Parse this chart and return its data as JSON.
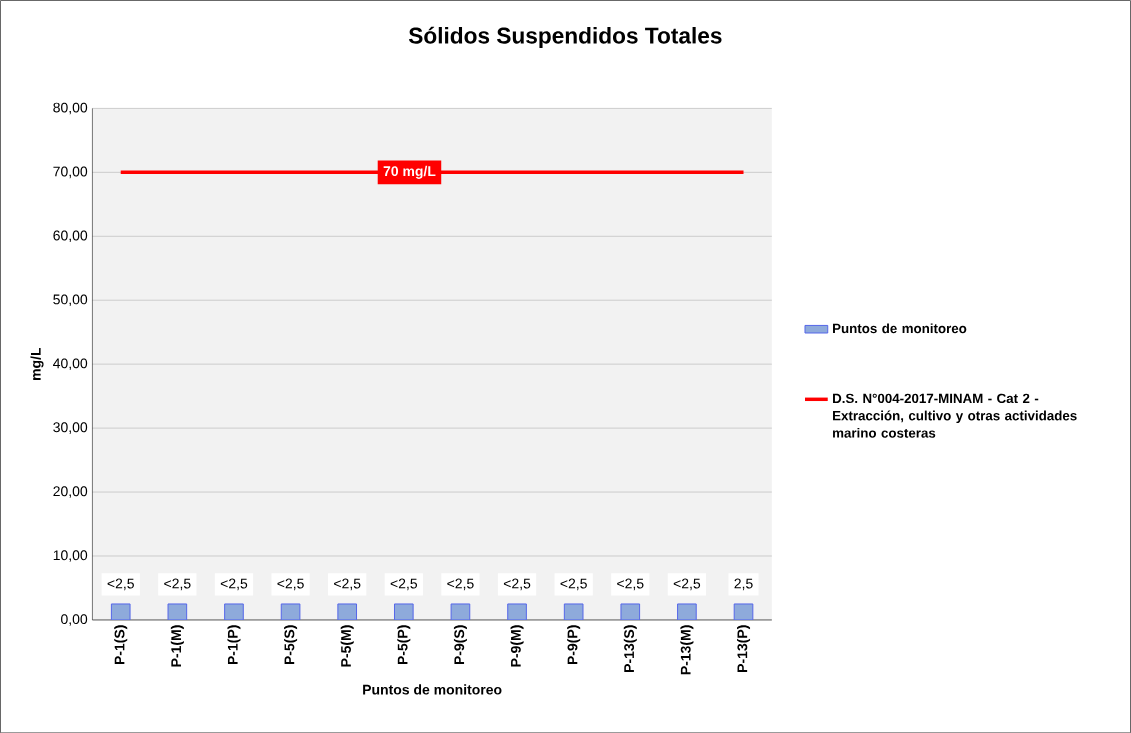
{
  "chart_data": {
    "type": "bar",
    "title": "Sólidos Suspendidos Totales",
    "xlabel": "Puntos de monitoreo",
    "ylabel": "mg/L",
    "categories": [
      "P-1(S)",
      "P-1(M)",
      "P-1(P)",
      "P-5(S)",
      "P-5(M)",
      "P-5(P)",
      "P-9(S)",
      "P-9(M)",
      "P-9(P)",
      "P-13(S)",
      "P-13(M)",
      "P-13(P)"
    ],
    "series": [
      {
        "name": "Puntos de monitoreo",
        "color": "#8eaadb",
        "values": [
          2.5,
          2.5,
          2.5,
          2.5,
          2.5,
          2.5,
          2.5,
          2.5,
          2.5,
          2.5,
          2.5,
          2.5
        ],
        "value_labels": [
          "<2,5",
          "<2,5",
          "<2,5",
          "<2,5",
          "<2,5",
          "<2,5",
          "<2,5",
          "<2,5",
          "<2,5",
          "<2,5",
          "<2,5",
          "2,5"
        ]
      },
      {
        "name": "D.S. N°004-2017-MINAM - Cat 2 - Extracción, cultivo y otras actividades marino costeras",
        "type": "line",
        "color": "#ff0000",
        "values": [
          70,
          70,
          70,
          70,
          70,
          70,
          70,
          70,
          70,
          70,
          70,
          70
        ]
      }
    ],
    "annotations": [
      {
        "text": "70 mg/L",
        "y": 70
      }
    ],
    "ylim": [
      0,
      80
    ],
    "yticks": [
      {
        "value": 0,
        "label": "0,00"
      },
      {
        "value": 10,
        "label": "10,00"
      },
      {
        "value": 20,
        "label": "20,00"
      },
      {
        "value": 30,
        "label": "30,00"
      },
      {
        "value": 40,
        "label": "40,00"
      },
      {
        "value": 50,
        "label": "50,00"
      },
      {
        "value": 60,
        "label": "60,00"
      },
      {
        "value": 70,
        "label": "70,00"
      },
      {
        "value": 80,
        "label": "80,00"
      }
    ],
    "grid": "y",
    "legend": "right"
  }
}
